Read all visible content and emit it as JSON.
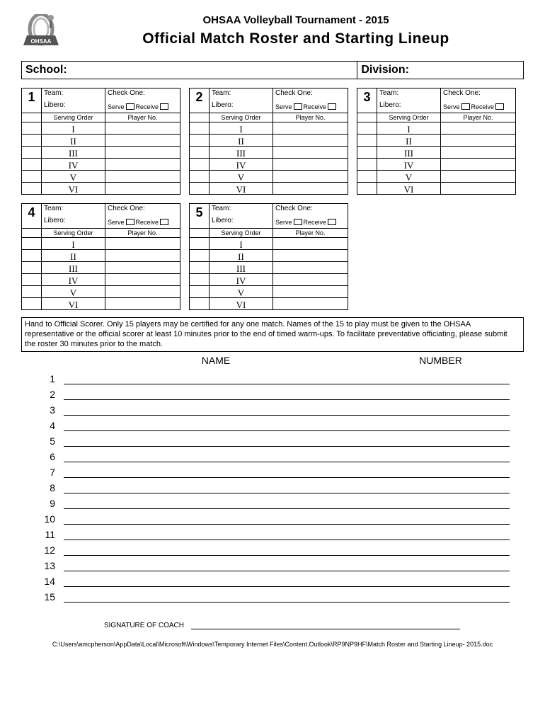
{
  "header": {
    "pretitle": "OHSAA Volleyball Tournament - 2015",
    "title": "Official Match Roster and Starting Lineup",
    "logo_text": "OHSAA"
  },
  "info_row": {
    "school_label": "School:",
    "division_label": "Division:"
  },
  "lineup_labels": {
    "team": "Team:",
    "check_one": "Check One:",
    "libero": "Libero:",
    "serve": "Serve",
    "receive": "Receive",
    "serving_order": "Serving Order",
    "player_no": "Player No."
  },
  "lineup_cards": [
    {
      "num": "1"
    },
    {
      "num": "2"
    },
    {
      "num": "3"
    },
    {
      "num": "4"
    },
    {
      "num": "5"
    }
  ],
  "roman": [
    "I",
    "II",
    "III",
    "IV",
    "V",
    "VI"
  ],
  "instructions": "Hand to Official Scorer.  Only 15 players may be certified for any one match. Names of the 15 to play must be given to the OHSAA representative or the official scorer at least 10 minutes prior to the end of timed warm-ups. To facilitate preventative officiating, please submit the roster 30 minutes prior to the match.",
  "roster": {
    "name_header": "NAME",
    "number_header": "NUMBER",
    "rows": [
      "1",
      "2",
      "3",
      "4",
      "5",
      "6",
      "7",
      "8",
      "9",
      "10",
      "11",
      "12",
      "13",
      "14",
      "15"
    ]
  },
  "signature_label": "SIGNATURE OF COACH",
  "footer_path": "C:\\Users\\amcpherson\\AppData\\Local\\Microsoft\\Windows\\Temporary Internet Files\\Content.Outlook\\RP9NP9HF\\Match Roster and Starting Lineup- 2015.doc"
}
